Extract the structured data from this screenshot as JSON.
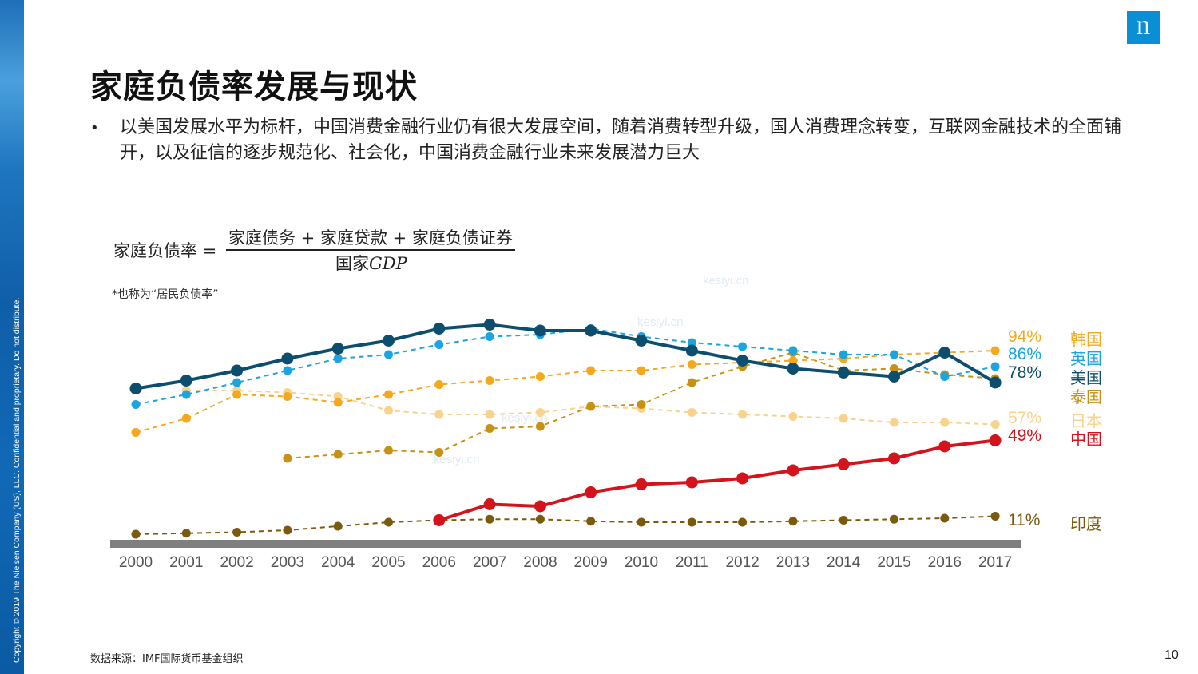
{
  "page": {
    "title": "家庭负债率发展与现状",
    "bullet": "以美国发展水平为标杆，中国消费金融行业仍有很大发展空间，随着消费转型升级，国人消费理念转变，互联网金融技术的全面铺开，以及征信的逐步规范化、社会化，中国消费金融行业未来发展潜力巨大",
    "formula_lhs": "家庭负债率 =",
    "formula_numerator": "家庭债务 + 家庭贷款 + 家庭负债证券",
    "formula_denominator_cn": "国家",
    "formula_denominator_en": "GDP",
    "note": "*也称为“居民负债率”",
    "source": "数据来源：IMF国际货币基金组织",
    "page_number": "10",
    "copyright": "Copyright © 2019 The Nielsen Company (US), LLC. Confidential and proprietary. Do not distribute.",
    "logo": "n",
    "watermark": "kesiyi.cn"
  },
  "chart_data": {
    "type": "line",
    "title": "",
    "xlabel": "",
    "ylabel": "",
    "categories": [
      "2000",
      "2001",
      "2002",
      "2003",
      "2004",
      "2005",
      "2006",
      "2007",
      "2008",
      "2009",
      "2010",
      "2011",
      "2012",
      "2013",
      "2014",
      "2015",
      "2016",
      "2017"
    ],
    "ylim": [
      0,
      105
    ],
    "grid": false,
    "legend": "right",
    "series": [
      {
        "name": "韩国",
        "color": "#f5a81c",
        "style": "dashed",
        "end_label": "94%",
        "values": [
          53,
          60,
          72,
          71,
          68,
          72,
          77,
          79,
          81,
          84,
          84,
          87,
          88,
          89,
          90,
          92,
          93,
          94
        ]
      },
      {
        "name": "英国",
        "color": "#1aa4e0",
        "style": "dashed",
        "end_label": "86%",
        "values": [
          67,
          72,
          78,
          84,
          90,
          92,
          97,
          101,
          102,
          105,
          101,
          98,
          96,
          94,
          92,
          92,
          81,
          86
        ]
      },
      {
        "name": "美国",
        "color": "#0d4e6e",
        "style": "solid",
        "end_label": "78%",
        "values": [
          75,
          79,
          84,
          90,
          95,
          99,
          105,
          107,
          104,
          104,
          99,
          94,
          89,
          85,
          83,
          81,
          93,
          78
        ]
      },
      {
        "name": "泰国",
        "color": "#c79213",
        "style": "dashed",
        "end_label": "",
        "values": [
          null,
          null,
          null,
          40,
          42,
          44,
          43,
          55,
          56,
          66,
          67,
          78,
          86,
          93,
          84,
          85,
          82,
          80
        ]
      },
      {
        "name": "日本",
        "color": "#f7d38c",
        "style": "dashed",
        "end_label": "57%",
        "values": [
          null,
          74,
          74,
          73,
          71,
          64,
          62,
          62,
          63,
          66,
          65,
          63,
          62,
          61,
          60,
          58,
          58,
          57
        ]
      },
      {
        "name": "中国",
        "color": "#d3141c",
        "style": "solid",
        "end_label": "49%",
        "values": [
          null,
          null,
          null,
          null,
          null,
          null,
          9,
          17,
          16,
          23,
          27,
          28,
          30,
          34,
          37,
          40,
          46,
          49
        ]
      },
      {
        "name": "印度",
        "color": "#7a5a0d",
        "style": "dashed",
        "end_label": "11%",
        "values": [
          2,
          2.5,
          3,
          4,
          6,
          8,
          9,
          9.5,
          9.5,
          8.5,
          8,
          8,
          8,
          8.5,
          9,
          9.5,
          10,
          11
        ]
      }
    ]
  }
}
